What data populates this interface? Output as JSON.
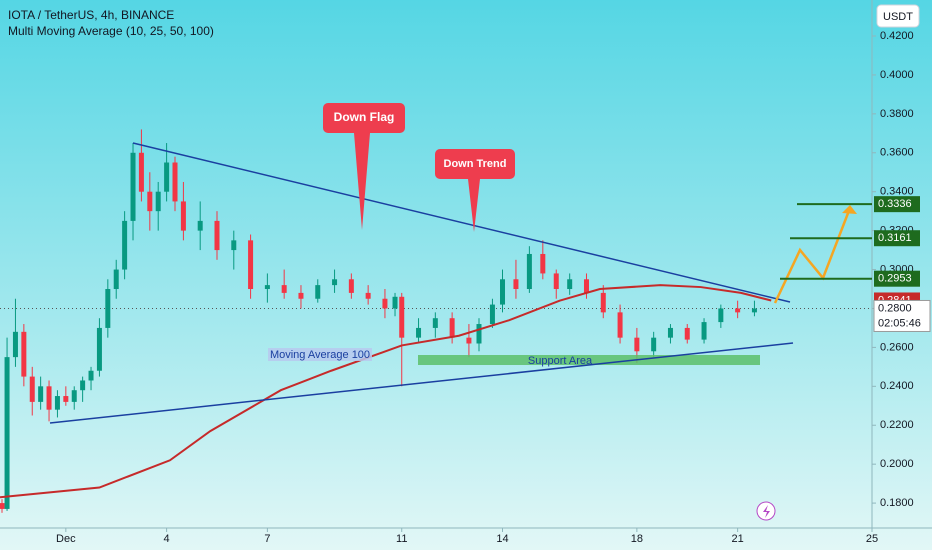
{
  "chart_data": {
    "type": "candlestick",
    "title": "IOTA / TetherUS, 4h, BINANCE",
    "subtitle": "Multi Moving Average (10, 25, 50, 100)",
    "currency_button": "USDT",
    "up_color": "#089981",
    "down_color": "#f23645",
    "x": [
      -0.9,
      -0.75,
      -0.5,
      -0.25,
      0,
      0.25,
      0.5,
      0.75,
      1,
      1.25,
      1.5,
      1.75,
      2,
      2.25,
      2.5,
      2.75,
      3,
      3.25,
      3.5,
      3.75,
      4,
      4.25,
      4.5,
      5,
      5.5,
      6,
      6.5,
      7,
      7.5,
      8,
      8.5,
      9,
      9.5,
      10,
      10.5,
      10.8,
      11,
      11.5,
      12,
      12.5,
      13,
      13.3,
      13.7,
      14,
      14.4,
      14.8,
      15.2,
      15.6,
      16,
      16.5,
      17,
      17.5,
      18,
      18.5,
      19,
      19.5,
      20,
      20.5,
      21,
      21.5
    ],
    "open": [
      0.18,
      0.177,
      0.255,
      0.268,
      0.245,
      0.232,
      0.24,
      0.228,
      0.235,
      0.232,
      0.238,
      0.243,
      0.248,
      0.27,
      0.29,
      0.3,
      0.325,
      0.36,
      0.34,
      0.33,
      0.34,
      0.355,
      0.335,
      0.32,
      0.325,
      0.31,
      0.315,
      0.29,
      0.292,
      0.288,
      0.285,
      0.292,
      0.295,
      0.288,
      0.285,
      0.28,
      0.286,
      0.265,
      0.27,
      0.275,
      0.265,
      0.262,
      0.272,
      0.282,
      0.295,
      0.29,
      0.308,
      0.298,
      0.29,
      0.295,
      0.288,
      0.278,
      0.265,
      0.258,
      0.265,
      0.27,
      0.264,
      0.273,
      0.28,
      0.278
    ],
    "high": [
      0.182,
      0.265,
      0.285,
      0.272,
      0.25,
      0.245,
      0.243,
      0.238,
      0.24,
      0.24,
      0.245,
      0.25,
      0.275,
      0.295,
      0.305,
      0.33,
      0.365,
      0.372,
      0.35,
      0.345,
      0.365,
      0.358,
      0.345,
      0.335,
      0.33,
      0.32,
      0.318,
      0.298,
      0.3,
      0.292,
      0.295,
      0.3,
      0.298,
      0.292,
      0.29,
      0.288,
      0.288,
      0.275,
      0.278,
      0.278,
      0.272,
      0.275,
      0.285,
      0.3,
      0.305,
      0.312,
      0.315,
      0.3,
      0.298,
      0.298,
      0.292,
      0.282,
      0.27,
      0.268,
      0.272,
      0.272,
      0.275,
      0.282,
      0.284,
      0.284
    ],
    "low": [
      0.175,
      0.176,
      0.25,
      0.24,
      0.225,
      0.228,
      0.222,
      0.224,
      0.23,
      0.228,
      0.232,
      0.238,
      0.245,
      0.265,
      0.285,
      0.295,
      0.315,
      0.335,
      0.32,
      0.32,
      0.335,
      0.33,
      0.315,
      0.31,
      0.305,
      0.3,
      0.285,
      0.283,
      0.285,
      0.28,
      0.283,
      0.288,
      0.285,
      0.282,
      0.275,
      0.276,
      0.24,
      0.262,
      0.265,
      0.262,
      0.255,
      0.258,
      0.27,
      0.278,
      0.285,
      0.288,
      0.295,
      0.285,
      0.287,
      0.285,
      0.275,
      0.262,
      0.252,
      0.255,
      0.262,
      0.262,
      0.262,
      0.27,
      0.275,
      0.276
    ],
    "close": [
      0.177,
      0.255,
      0.268,
      0.245,
      0.232,
      0.24,
      0.228,
      0.235,
      0.232,
      0.238,
      0.243,
      0.248,
      0.27,
      0.29,
      0.3,
      0.325,
      0.36,
      0.34,
      0.33,
      0.34,
      0.355,
      0.335,
      0.32,
      0.325,
      0.31,
      0.315,
      0.29,
      0.292,
      0.288,
      0.285,
      0.292,
      0.295,
      0.288,
      0.285,
      0.28,
      0.286,
      0.265,
      0.27,
      0.275,
      0.265,
      0.262,
      0.272,
      0.282,
      0.295,
      0.29,
      0.308,
      0.298,
      0.29,
      0.295,
      0.288,
      0.278,
      0.265,
      0.258,
      0.265,
      0.27,
      0.264,
      0.273,
      0.28,
      0.278,
      0.28
    ],
    "moving_average": {
      "color": "#c62a2a",
      "x": [
        -0.96,
        2.0,
        4.1,
        5.3,
        7.4,
        8.9,
        11,
        12.7,
        14.2,
        15.7,
        16.9,
        18.7,
        19.9,
        21.1,
        22
      ],
      "values": [
        0.183,
        0.188,
        0.202,
        0.217,
        0.238,
        0.248,
        0.261,
        0.266,
        0.274,
        0.284,
        0.29,
        0.292,
        0.291,
        0.288,
        0.2841
      ]
    },
    "levels": [
      0.2953,
      0.3161,
      0.3336
    ],
    "level_color": "#1e6b1e",
    "current_price": 0.28,
    "current_price_label": "0.2800",
    "countdown": "02:05:46",
    "annotations": [
      "Down Flag",
      "Down Trend",
      "Moving Average 100",
      "Support Area"
    ],
    "xlim": [
      -0.96,
      25
    ],
    "xticks": [
      {
        "value": 1,
        "label": "Dec"
      },
      4,
      7,
      11,
      14,
      18,
      21,
      25
    ],
    "ylim": [
      0.1672,
      0.4385
    ],
    "yticks": [
      {
        "value": 0.18,
        "label": "0.1800"
      },
      {
        "value": 0.2,
        "label": "0.2000"
      },
      {
        "value": 0.22,
        "label": "0.2200"
      },
      {
        "value": 0.24,
        "label": "0.2400"
      },
      {
        "value": 0.26,
        "label": "0.2600"
      },
      {
        "value": 0.28,
        "label": "0.2800"
      },
      {
        "value": 0.3,
        "label": "0.3000"
      },
      {
        "value": 0.32,
        "label": "0.3200"
      },
      {
        "value": 0.34,
        "label": "0.3400"
      },
      {
        "value": 0.36,
        "label": "0.3600"
      },
      {
        "value": 0.38,
        "label": "0.3800"
      },
      {
        "value": 0.4,
        "label": "0.4000"
      },
      {
        "value": 0.42,
        "label": "0.4200"
      }
    ]
  }
}
